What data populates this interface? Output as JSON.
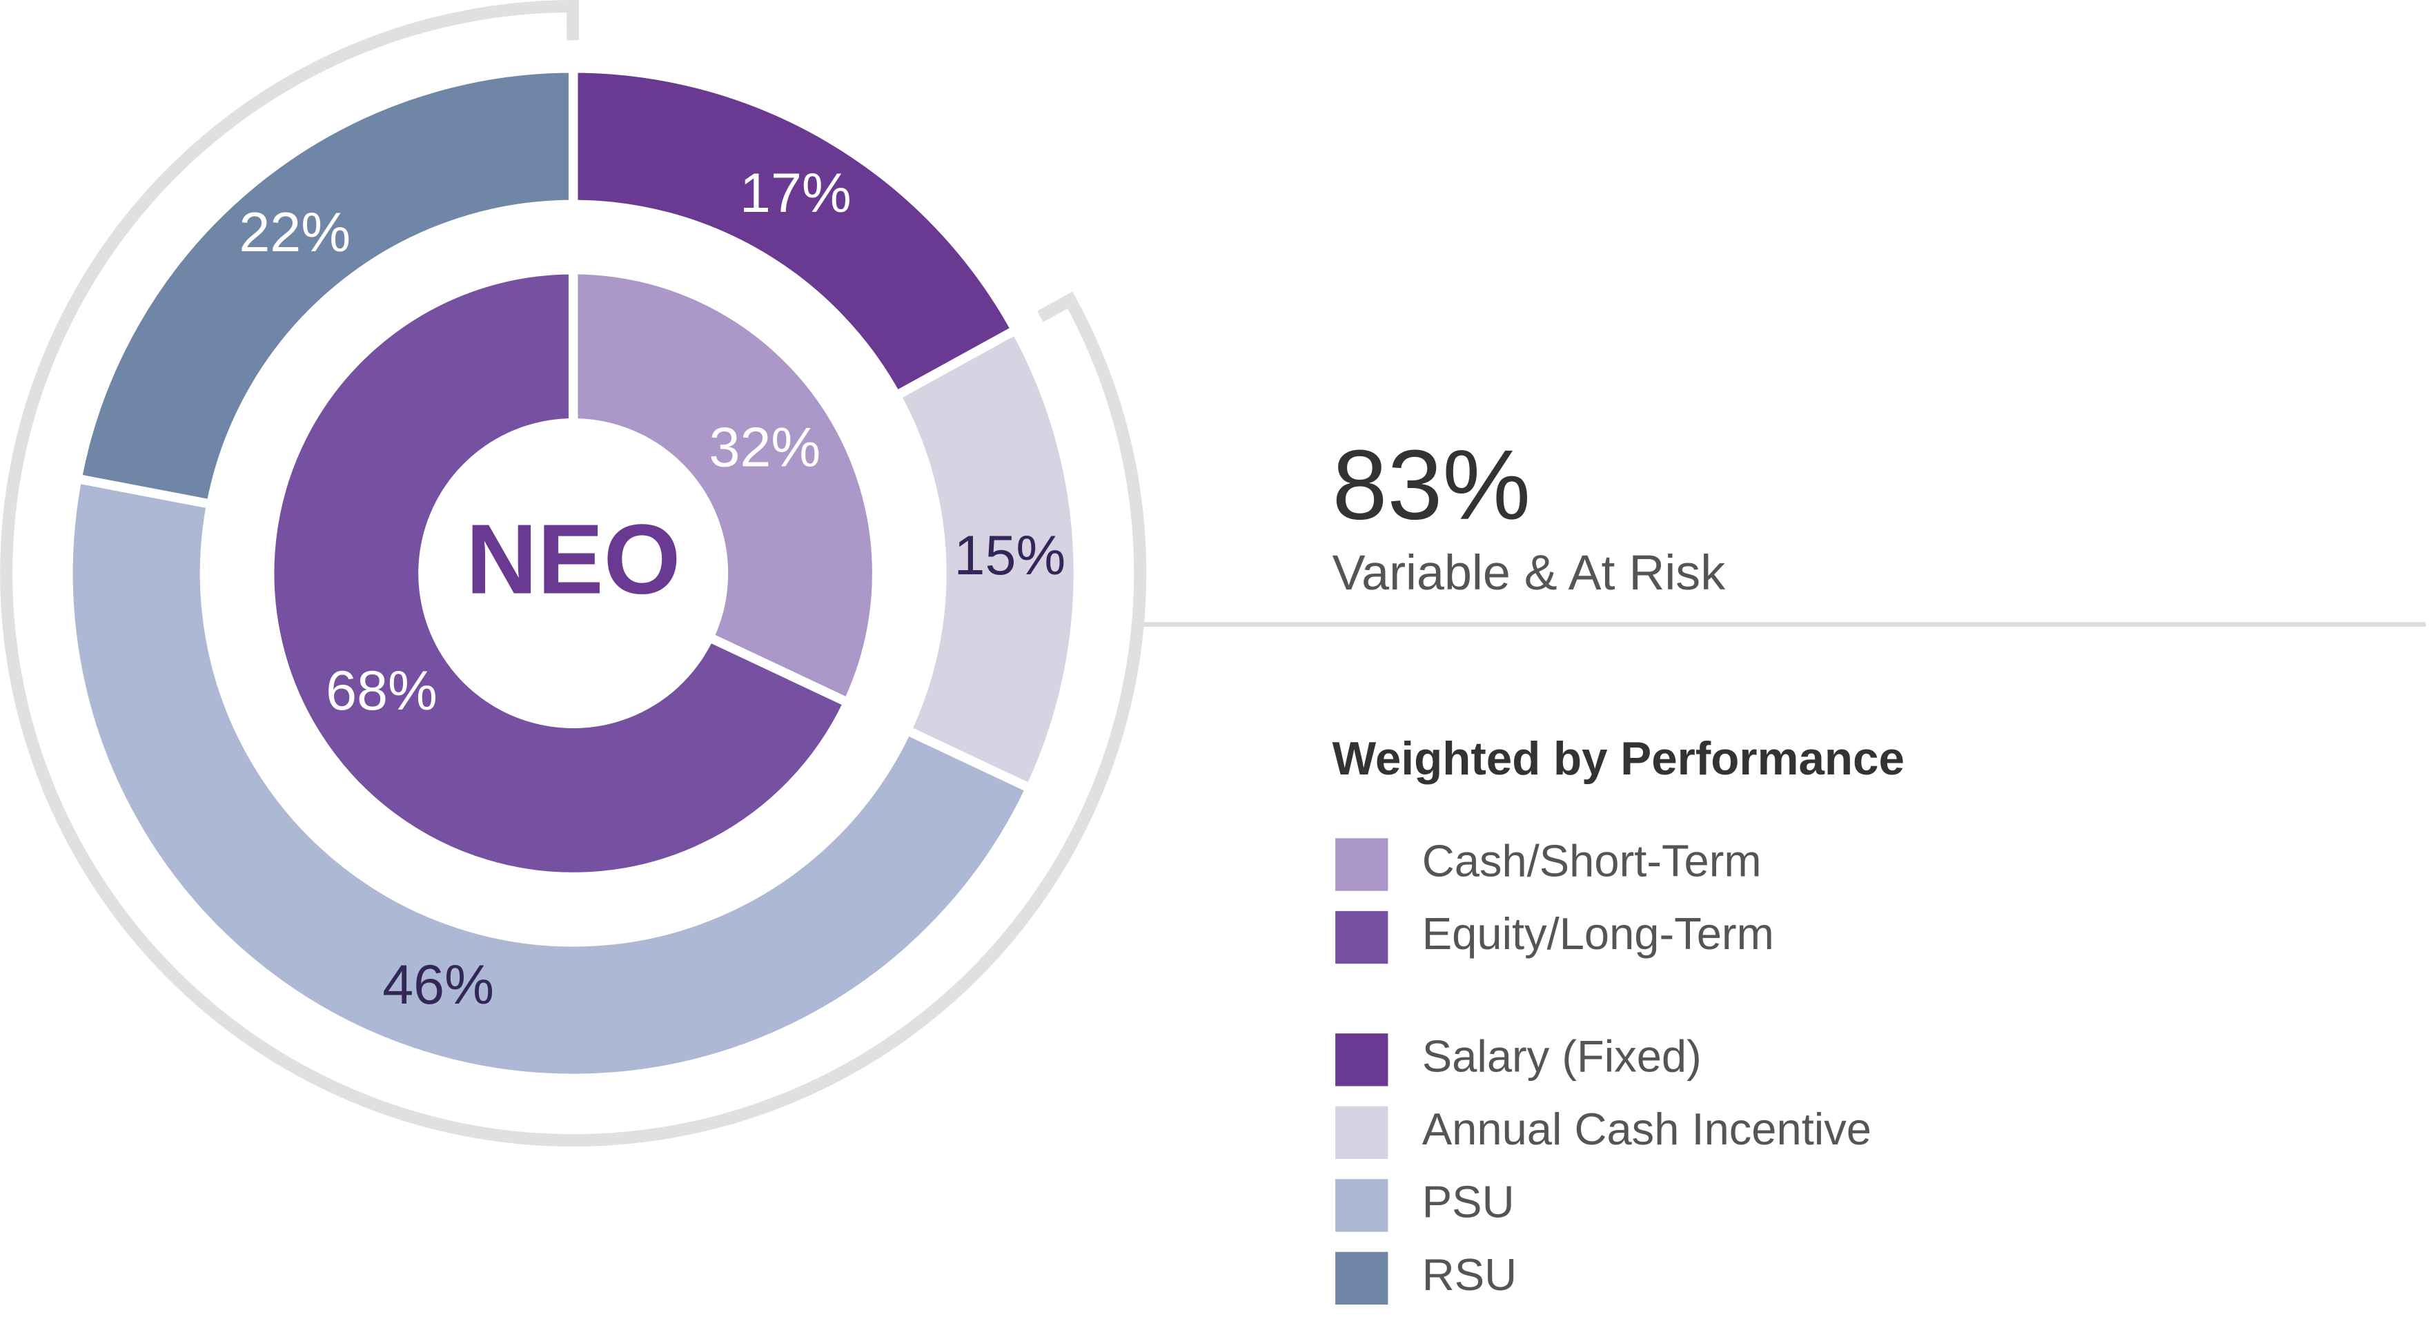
{
  "chart_data": {
    "type": "donut",
    "center_label": "NEO",
    "rings": [
      {
        "categories": [
          "Cash/Short-Term",
          "Equity/Long-Term"
        ],
        "values": [
          32,
          68
        ],
        "value_labels": [
          "32%",
          "68%"
        ],
        "colors": [
          "#ab98c9",
          "#7651a1"
        ]
      },
      {
        "categories": [
          "Salary (Fixed)",
          "Annual Cash Incentive",
          "PSU",
          "RSU"
        ],
        "values": [
          17,
          15,
          46,
          22
        ],
        "value_labels": [
          "17%",
          "15%",
          "46%",
          "22%"
        ],
        "colors": [
          "#6a3a93",
          "#d8d3e3",
          "#adb8d4",
          "#6f86a6"
        ]
      }
    ],
    "annotation": {
      "value": 83,
      "label": "83%",
      "text": "Variable & At Risk"
    },
    "legend_title": "Weighted by Performance"
  }
}
